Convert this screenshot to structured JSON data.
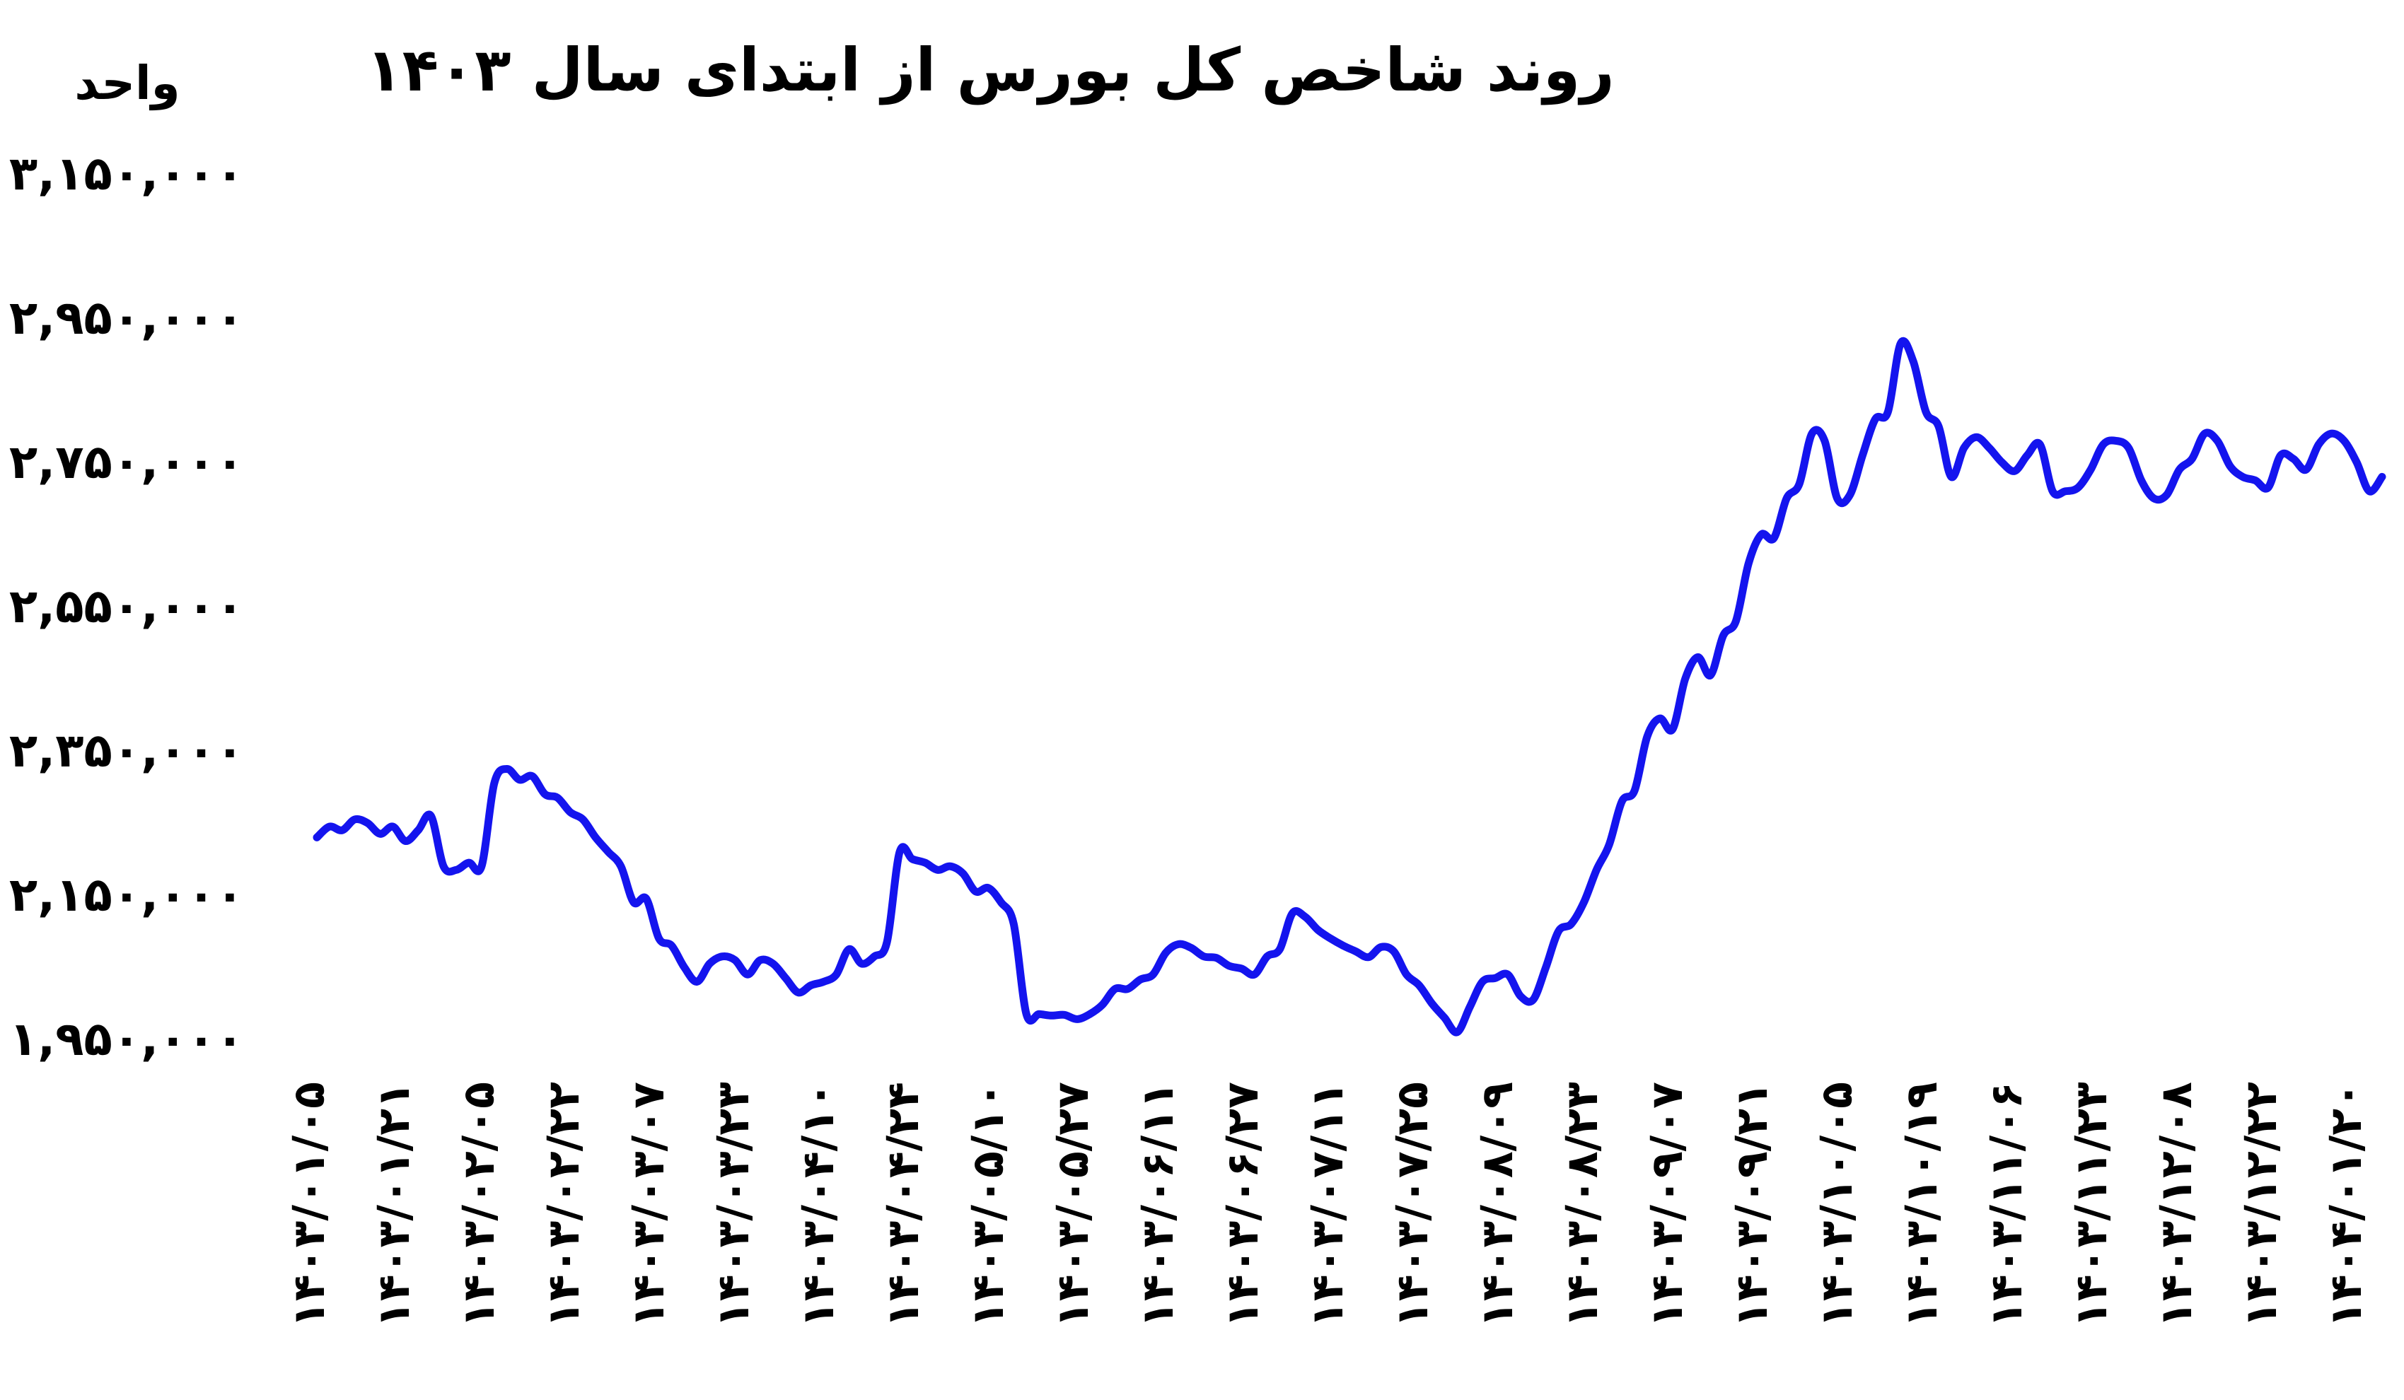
{
  "chart_data": {
    "type": "line",
    "title": "روند شاخص کل بورس از ابتدای سال ۱۴۰۳",
    "ylabel": "واحد",
    "xlabel": "",
    "ylim": [
      1950000,
      3150000
    ],
    "yticks": [
      1950000,
      2150000,
      2350000,
      2550000,
      2750000,
      2950000,
      3150000
    ],
    "ytick_labels": [
      "۱,۹۵۰,۰۰۰",
      "۲,۱۵۰,۰۰۰",
      "۲,۳۵۰,۰۰۰",
      "۲,۵۵۰,۰۰۰",
      "۲,۷۵۰,۰۰۰",
      "۲,۹۵۰,۰۰۰",
      "۳,۱۵۰,۰۰۰"
    ],
    "xtick_labels": [
      "۱۴۰۳/۰۱/۰۵",
      "۱۴۰۳/۰۱/۲۱",
      "۱۴۰۳/۰۲/۰۵",
      "۱۴۰۳/۰۲/۲۲",
      "۱۴۰۳/۰۳/۰۷",
      "۱۴۰۳/۰۳/۲۳",
      "۱۴۰۳/۰۴/۱۰",
      "۱۴۰۳/۰۴/۲۴",
      "۱۴۰۳/۰۵/۱۰",
      "۱۴۰۳/۰۵/۲۷",
      "۱۴۰۳/۰۶/۱۱",
      "۱۴۰۳/۰۶/۲۷",
      "۱۴۰۳/۰۷/۱۱",
      "۱۴۰۳/۰۷/۲۵",
      "۱۴۰۳/۰۸/۰۹",
      "۱۴۰۳/۰۸/۲۳",
      "۱۴۰۳/۰۹/۰۷",
      "۱۴۰۳/۰۹/۲۱",
      "۱۴۰۳/۱۰/۰۵",
      "۱۴۰۳/۱۰/۱۹",
      "۱۴۰۳/۱۱/۰۶",
      "۱۴۰۳/۱۱/۲۳",
      "۱۴۰۳/۱۲/۰۸",
      "۱۴۰۳/۱۲/۲۲",
      "۱۴۰۴/۰۱/۲۰"
    ],
    "grid": false,
    "legend": "none",
    "series": [
      {
        "color": "#1414ee",
        "values": [
          2230000,
          2245000,
          2240000,
          2255000,
          2250000,
          2235000,
          2245000,
          2225000,
          2240000,
          2260000,
          2190000,
          2185000,
          2195000,
          2190000,
          2305000,
          2325000,
          2310000,
          2315000,
          2290000,
          2285000,
          2265000,
          2255000,
          2230000,
          2210000,
          2190000,
          2140000,
          2145000,
          2090000,
          2080000,
          2050000,
          2030000,
          2055000,
          2065000,
          2060000,
          2040000,
          2060000,
          2055000,
          2035000,
          2015000,
          2025000,
          2030000,
          2040000,
          2075000,
          2055000,
          2065000,
          2085000,
          2210000,
          2200000,
          2195000,
          2185000,
          2190000,
          2180000,
          2155000,
          2160000,
          2140000,
          2110000,
          1985000,
          1985000,
          1983000,
          1984000,
          1978000,
          1985000,
          1998000,
          2020000,
          2020000,
          2033000,
          2040000,
          2070000,
          2082000,
          2077000,
          2065000,
          2063000,
          2052000,
          2048000,
          2040000,
          2065000,
          2075000,
          2125000,
          2120000,
          2102000,
          2090000,
          2080000,
          2072000,
          2064000,
          2078000,
          2072000,
          2040000,
          2025000,
          2000000,
          1980000,
          1960000,
          1995000,
          2030000,
          2035000,
          2040000,
          2010000,
          2005000,
          2050000,
          2100000,
          2110000,
          2140000,
          2185000,
          2220000,
          2280000,
          2295000,
          2370000,
          2395000,
          2380000,
          2450000,
          2480000,
          2455000,
          2510000,
          2530000,
          2610000,
          2650000,
          2645000,
          2700000,
          2720000,
          2790000,
          2780000,
          2700000,
          2705000,
          2760000,
          2810000,
          2820000,
          2915000,
          2890000,
          2820000,
          2800000,
          2730000,
          2770000,
          2785000,
          2770000,
          2750000,
          2738000,
          2760000,
          2775000,
          2710000,
          2710000,
          2715000,
          2740000,
          2775000,
          2780000,
          2770000,
          2725000,
          2700000,
          2705000,
          2740000,
          2755000,
          2790000,
          2780000,
          2745000,
          2730000,
          2725000,
          2715000,
          2760000,
          2755000,
          2740000,
          2775000,
          2790000,
          2780000,
          2750000,
          2710000,
          2730000
        ]
      }
    ]
  }
}
